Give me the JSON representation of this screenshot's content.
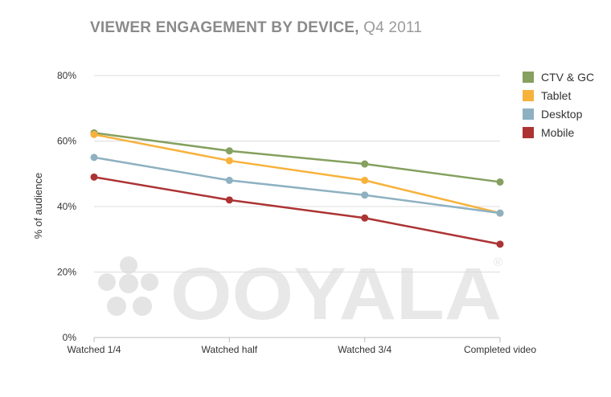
{
  "title": {
    "main": "VIEWER ENGAGEMENT BY DEVICE,",
    "sub": "Q4 2011"
  },
  "watermark": {
    "text": "OOYALA",
    "mark": "®"
  },
  "chart_data": {
    "type": "line",
    "title": "VIEWER ENGAGEMENT BY DEVICE, Q4 2011",
    "xlabel": "",
    "ylabel": "% of audience",
    "categories": [
      "Watched 1/4",
      "Watched half",
      "Watched 3/4",
      "Completed video"
    ],
    "ylim": [
      0,
      80
    ],
    "yticks": [
      0,
      20,
      40,
      60,
      80
    ],
    "ytick_labels": [
      "0%",
      "20%",
      "40%",
      "60%",
      "80%"
    ],
    "grid": true,
    "legend_position": "top-right",
    "series": [
      {
        "name": "CTV & GC",
        "color": "#85a05f",
        "values": [
          62.5,
          57,
          53,
          47.5
        ]
      },
      {
        "name": "Tablet",
        "color": "#f7b23c",
        "values": [
          62,
          54,
          48,
          38
        ]
      },
      {
        "name": "Desktop",
        "color": "#8eb1c1",
        "values": [
          55,
          48,
          43.5,
          38
        ]
      },
      {
        "name": "Mobile",
        "color": "#ac3333",
        "values": [
          49,
          42,
          36.5,
          28.5
        ]
      }
    ]
  }
}
